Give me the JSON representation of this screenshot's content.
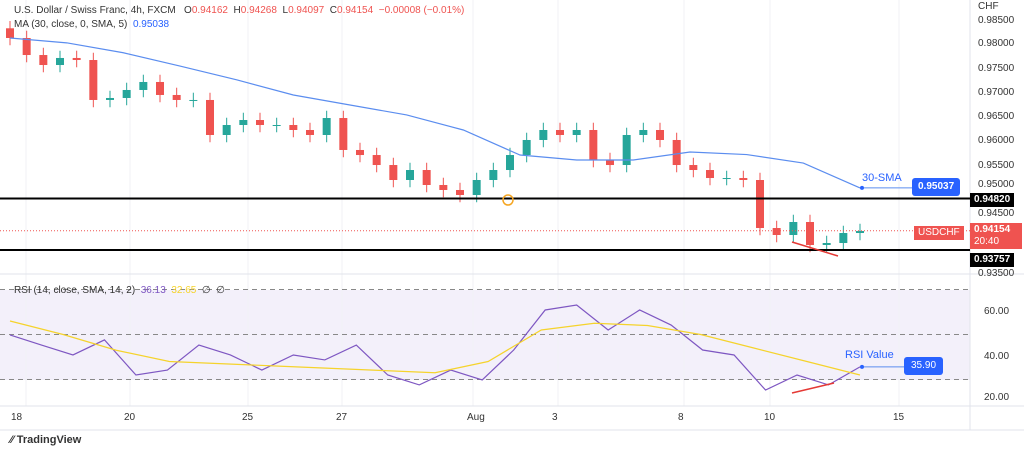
{
  "header": {
    "symbol": "U.S. Dollar / Swiss Franc, 4h, FXCM",
    "o_label": "O",
    "o": "0.94162",
    "h_label": "H",
    "h": "0.94268",
    "l_label": "L",
    "l": "0.94097",
    "c_label": "C",
    "c": "0.94154",
    "change": "−0.00008 (−0.01%)",
    "ma_label": "MA (30, close, 0, SMA, 5)",
    "ma_value": "0.95038"
  },
  "rsi_header": {
    "label": "RSI (14, close, SMA, 14, 2)",
    "rsi": "36.13",
    "sma": "32.65",
    "extra1": "∅",
    "extra2": "∅"
  },
  "colors": {
    "up": "#26a69a",
    "down": "#ef5350",
    "sma": "#5b8def",
    "rsi": "#7e57c2",
    "rsi_sma": "#f5d32c",
    "accent": "#2962ff"
  },
  "annotations": {
    "sma_text": "30-SMA",
    "sma_badge": "0.95037",
    "rsi_text": "RSI Value",
    "rsi_badge": "35.90"
  },
  "logo": "TradingView",
  "chart_data": [
    {
      "type": "candlestick",
      "title": "U.S. Dollar / Swiss Franc, 4h, FXCM",
      "ylabel": "CHF",
      "ylim": [
        0.935,
        0.985
      ],
      "y_ticks": [
        "0.98500",
        "0.98000",
        "0.97500",
        "0.97000",
        "0.96500",
        "0.96000",
        "0.95500",
        "0.95000",
        "0.94500",
        "0.93500"
      ],
      "x_ticks": [
        "18",
        "20",
        "25",
        "27",
        "Aug",
        "3",
        "8",
        "10",
        "15"
      ],
      "closes": [
        0.98129,
        0.97778,
        0.97572,
        0.97717,
        0.97675,
        0.96851,
        0.96892,
        0.97057,
        0.97222,
        0.96954,
        0.96851,
        0.96851,
        0.96129,
        0.96335,
        0.96438,
        0.96335,
        0.96335,
        0.96232,
        0.96129,
        0.96479,
        0.9582,
        0.95716,
        0.9551,
        0.95201,
        0.95407,
        0.95098,
        0.94995,
        0.94892,
        0.95201,
        0.95407,
        0.95716,
        0.96026,
        0.96232,
        0.96129,
        0.96232,
        0.95613,
        0.9551,
        0.96129,
        0.96232,
        0.96026,
        0.9551,
        0.95407,
        0.95242,
        0.95242,
        0.95201,
        0.94211,
        0.94067,
        0.94335,
        0.93861,
        0.93902,
        0.94108,
        0.9415
      ],
      "sma": [
        0.98129,
        0.98029,
        0.97825,
        0.9755,
        0.97266,
        0.96954,
        0.96748,
        0.96542,
        0.96232,
        0.95716,
        0.95613,
        0.95613,
        0.95778,
        0.95726,
        0.9555,
        0.95038
      ],
      "last_price": "0.94154",
      "countdown": "20:40",
      "symbol": "USDCHF",
      "horizontal_levels": [
        "0.94820",
        "0.93757"
      ]
    },
    {
      "type": "line",
      "title": "RSI (14, close, SMA, 14, 2)",
      "ylim": [
        20,
        70
      ],
      "y_ticks": [
        "60.00",
        "40.00",
        "20.00"
      ],
      "bands": [
        70,
        50,
        30
      ],
      "rsi": [
        49.8,
        45.3,
        40.9,
        47.6,
        32,
        34.2,
        45.3,
        40.9,
        34.2,
        40.9,
        38.7,
        45.3,
        32,
        27.6,
        34.2,
        29.8,
        43.1,
        60.9,
        63.1,
        52,
        60.9,
        54.2,
        43.1,
        40.9,
        25.3,
        32,
        27.6,
        35.6
      ],
      "rsi_sma": [
        56,
        50,
        43,
        38,
        37,
        36,
        35,
        34,
        33,
        38,
        52,
        55,
        54,
        50,
        44,
        38,
        32
      ]
    }
  ]
}
